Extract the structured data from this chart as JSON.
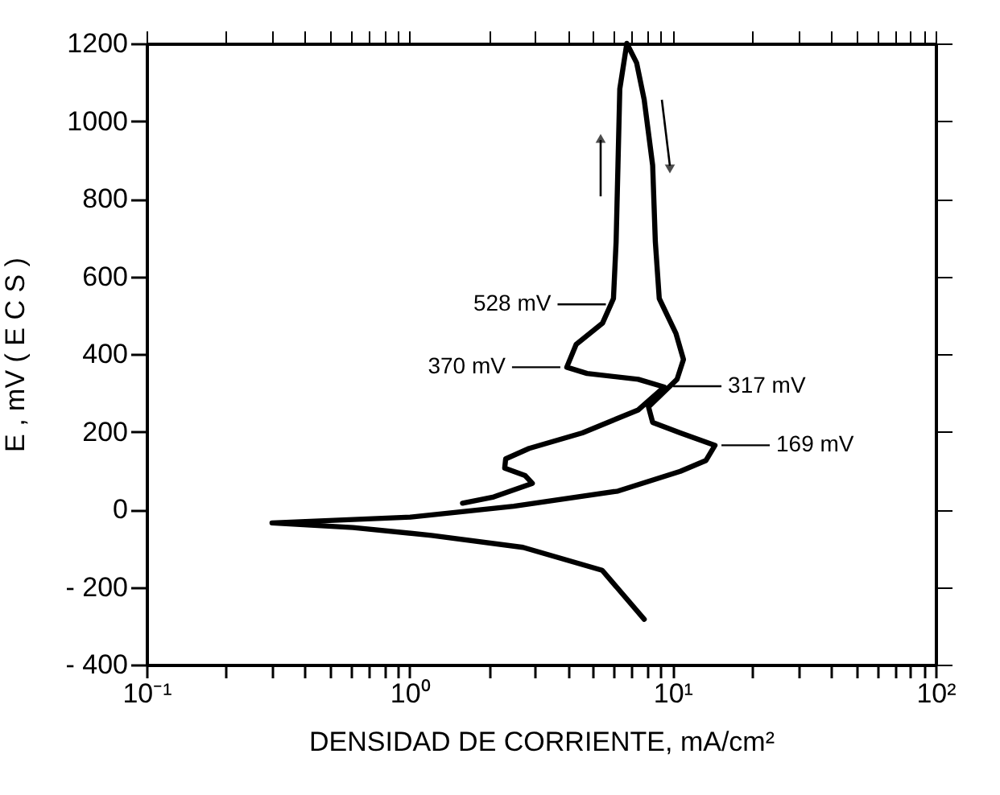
{
  "chart_data": {
    "type": "line",
    "xlabel": "DENSIDAD DE CORRIENTE,  mA/cm²",
    "ylabel": "E ,   mV   ( E C S )",
    "log": "x",
    "grid": false,
    "marker": "none",
    "line_style": "solid",
    "xlim": [
      0.1,
      100
    ],
    "ylim": [
      -400,
      1200
    ],
    "xticks": [
      {
        "value": 0.1,
        "label": "10⁻¹"
      },
      {
        "value": 0.2,
        "label": null
      },
      {
        "value": 0.3,
        "label": null
      },
      {
        "value": 0.4,
        "label": null
      },
      {
        "value": 0.5,
        "label": null
      },
      {
        "value": 0.6,
        "label": null
      },
      {
        "value": 0.7,
        "label": null
      },
      {
        "value": 0.8,
        "label": null
      },
      {
        "value": 0.9,
        "label": null
      },
      {
        "value": 1,
        "label": "10⁰"
      },
      {
        "value": 2,
        "label": null
      },
      {
        "value": 3,
        "label": null
      },
      {
        "value": 4,
        "label": null
      },
      {
        "value": 5,
        "label": null
      },
      {
        "value": 6,
        "label": null
      },
      {
        "value": 7,
        "label": null
      },
      {
        "value": 8,
        "label": null
      },
      {
        "value": 9,
        "label": null
      },
      {
        "value": 10,
        "label": "10¹"
      },
      {
        "value": 20,
        "label": null
      },
      {
        "value": 30,
        "label": null
      },
      {
        "value": 40,
        "label": null
      },
      {
        "value": 50,
        "label": null
      },
      {
        "value": 60,
        "label": null
      },
      {
        "value": 70,
        "label": null
      },
      {
        "value": 80,
        "label": null
      },
      {
        "value": 90,
        "label": null
      },
      {
        "value": 100,
        "label": "10²"
      }
    ],
    "yticks": [
      {
        "value": -400,
        "label": "- 400"
      },
      {
        "value": -200,
        "label": "- 200"
      },
      0,
      200,
      400,
      600,
      800,
      1000,
      1200
    ],
    "series": [
      {
        "color": "#000000",
        "x": [
          1.59,
          2.09,
          2.93,
          2.75,
          2.3,
          2.32,
          2.85,
          4.54,
          7.4,
          9.3,
          7.4,
          4.73,
          3.96,
          4.3,
          5.42,
          5.96,
          6.1,
          6.2,
          6.3,
          6.7,
          7.3,
          7.8,
          8.4,
          8.6,
          8.9,
          10.3,
          11.0,
          10.4,
          9.3,
          8.1,
          8.4,
          10.7,
          14.5,
          13.4,
          10.7,
          6.2,
          2.49,
          1.01,
          0.3,
          0.61,
          1.21,
          2.7,
          5.4,
          7.8
        ],
        "values": [
          16,
          32,
          67,
          87,
          106,
          130,
          157,
          197,
          256,
          315,
          335,
          350,
          366,
          425,
          480,
          543,
          689,
          886,
          1083,
          1200,
          1150,
          1055,
          886,
          689,
          543,
          453,
          386,
          335,
          303,
          264,
          224,
          197,
          165,
          126,
          98,
          47,
          8,
          -20,
          -35,
          -47,
          -67,
          -98,
          -157,
          -283
        ]
      }
    ],
    "annotations": [
      {
        "text": "528 mV",
        "x": 5.9,
        "y": 528
      },
      {
        "text": "370 mV",
        "x": 3.96,
        "y": 366
      },
      {
        "text": "317 mV",
        "x": 9.5,
        "y": 317
      },
      {
        "text": "169 mV",
        "x": 14.5,
        "y": 165
      }
    ]
  }
}
